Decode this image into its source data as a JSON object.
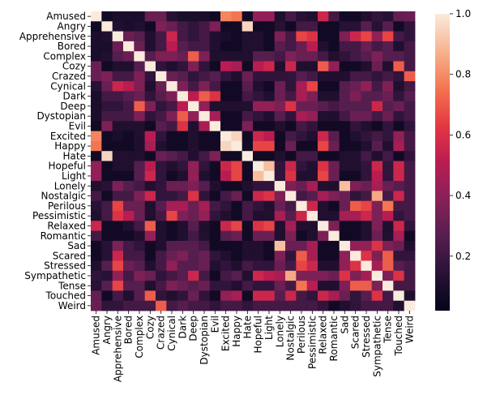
{
  "chart_data": {
    "type": "heatmap",
    "title": "",
    "xlabel": "",
    "ylabel": "",
    "labels": [
      "Amused",
      "Angry",
      "Apprehensive",
      "Bored",
      "Complex",
      "Cozy",
      "Crazed",
      "Cynical",
      "Dark",
      "Deep",
      "Dystopian",
      "Evil",
      "Excited",
      "Happy",
      "Hate",
      "Hopeful",
      "Light",
      "Lonely",
      "Nostalgic",
      "Perilous",
      "Pessimistic",
      "Relaxed",
      "Romantic",
      "Sad",
      "Scared",
      "Stressed",
      "Sympathetic",
      "Tense",
      "Touched",
      "Weird"
    ],
    "value_range": [
      0.0,
      1.0
    ],
    "colorbar_ticks": [
      0.2,
      0.4,
      0.6,
      0.8,
      1.0
    ],
    "colorbar_tick_labels": [
      "0.2",
      "0.4",
      "0.6",
      "0.8",
      "1.0"
    ],
    "colormap": "rocket",
    "matrix": [
      [
        1.0,
        0.05,
        0.08,
        0.08,
        0.08,
        0.3,
        0.3,
        0.12,
        0.08,
        0.08,
        0.08,
        0.05,
        0.78,
        0.75,
        0.05,
        0.4,
        0.4,
        0.1,
        0.2,
        0.12,
        0.1,
        0.55,
        0.2,
        0.05,
        0.05,
        0.1,
        0.15,
        0.12,
        0.28,
        0.3
      ],
      [
        0.05,
        1.0,
        0.1,
        0.08,
        0.1,
        0.05,
        0.35,
        0.3,
        0.2,
        0.15,
        0.2,
        0.35,
        0.05,
        0.05,
        0.95,
        0.05,
        0.05,
        0.12,
        0.05,
        0.2,
        0.2,
        0.05,
        0.05,
        0.12,
        0.12,
        0.25,
        0.12,
        0.25,
        0.05,
        0.15
      ],
      [
        0.08,
        0.1,
        1.0,
        0.3,
        0.25,
        0.1,
        0.2,
        0.55,
        0.2,
        0.15,
        0.2,
        0.1,
        0.08,
        0.05,
        0.1,
        0.1,
        0.05,
        0.35,
        0.2,
        0.65,
        0.6,
        0.05,
        0.05,
        0.35,
        0.55,
        0.65,
        0.4,
        0.65,
        0.2,
        0.15
      ],
      [
        0.08,
        0.08,
        0.3,
        1.0,
        0.3,
        0.1,
        0.2,
        0.5,
        0.25,
        0.2,
        0.2,
        0.1,
        0.05,
        0.05,
        0.1,
        0.1,
        0.05,
        0.25,
        0.2,
        0.3,
        0.5,
        0.1,
        0.05,
        0.2,
        0.2,
        0.3,
        0.2,
        0.25,
        0.1,
        0.2
      ],
      [
        0.08,
        0.1,
        0.25,
        0.3,
        1.0,
        0.25,
        0.35,
        0.35,
        0.3,
        0.7,
        0.35,
        0.1,
        0.1,
        0.1,
        0.1,
        0.25,
        0.25,
        0.2,
        0.35,
        0.3,
        0.3,
        0.2,
        0.1,
        0.15,
        0.2,
        0.25,
        0.35,
        0.25,
        0.25,
        0.2
      ],
      [
        0.3,
        0.05,
        0.1,
        0.1,
        0.25,
        1.0,
        0.15,
        0.1,
        0.15,
        0.35,
        0.15,
        0.05,
        0.5,
        0.45,
        0.05,
        0.5,
        0.55,
        0.1,
        0.55,
        0.1,
        0.1,
        0.7,
        0.4,
        0.05,
        0.05,
        0.1,
        0.3,
        0.1,
        0.7,
        0.2
      ],
      [
        0.3,
        0.35,
        0.2,
        0.2,
        0.35,
        0.15,
        1.0,
        0.3,
        0.25,
        0.15,
        0.2,
        0.25,
        0.15,
        0.1,
        0.3,
        0.15,
        0.15,
        0.15,
        0.15,
        0.25,
        0.2,
        0.1,
        0.1,
        0.1,
        0.2,
        0.2,
        0.15,
        0.2,
        0.15,
        0.7
      ],
      [
        0.12,
        0.3,
        0.55,
        0.5,
        0.35,
        0.1,
        0.3,
        1.0,
        0.35,
        0.2,
        0.35,
        0.2,
        0.05,
        0.05,
        0.25,
        0.1,
        0.05,
        0.3,
        0.15,
        0.45,
        0.65,
        0.05,
        0.05,
        0.25,
        0.3,
        0.4,
        0.2,
        0.35,
        0.1,
        0.2
      ],
      [
        0.08,
        0.2,
        0.2,
        0.25,
        0.3,
        0.15,
        0.25,
        0.35,
        1.0,
        0.5,
        0.7,
        0.6,
        0.05,
        0.05,
        0.2,
        0.15,
        0.1,
        0.3,
        0.2,
        0.45,
        0.35,
        0.1,
        0.1,
        0.25,
        0.35,
        0.25,
        0.25,
        0.3,
        0.15,
        0.25
      ],
      [
        0.08,
        0.15,
        0.15,
        0.2,
        0.7,
        0.35,
        0.15,
        0.2,
        0.5,
        1.0,
        0.4,
        0.1,
        0.1,
        0.1,
        0.1,
        0.4,
        0.4,
        0.35,
        0.6,
        0.3,
        0.3,
        0.25,
        0.2,
        0.25,
        0.25,
        0.25,
        0.55,
        0.25,
        0.3,
        0.2
      ],
      [
        0.08,
        0.2,
        0.2,
        0.2,
        0.35,
        0.15,
        0.2,
        0.35,
        0.7,
        0.4,
        1.0,
        0.45,
        0.05,
        0.05,
        0.2,
        0.15,
        0.1,
        0.25,
        0.15,
        0.45,
        0.4,
        0.1,
        0.1,
        0.2,
        0.3,
        0.3,
        0.2,
        0.3,
        0.15,
        0.2
      ],
      [
        0.05,
        0.35,
        0.1,
        0.1,
        0.1,
        0.05,
        0.25,
        0.2,
        0.6,
        0.1,
        0.45,
        1.0,
        0.05,
        0.05,
        0.35,
        0.05,
        0.05,
        0.1,
        0.05,
        0.2,
        0.15,
        0.05,
        0.05,
        0.05,
        0.15,
        0.1,
        0.05,
        0.15,
        0.05,
        0.15
      ],
      [
        0.78,
        0.05,
        0.08,
        0.05,
        0.1,
        0.5,
        0.15,
        0.05,
        0.05,
        0.1,
        0.05,
        0.05,
        1.0,
        0.95,
        0.05,
        0.55,
        0.5,
        0.05,
        0.2,
        0.15,
        0.1,
        0.55,
        0.25,
        0.05,
        0.1,
        0.15,
        0.2,
        0.15,
        0.4,
        0.2
      ],
      [
        0.75,
        0.05,
        0.05,
        0.05,
        0.1,
        0.45,
        0.1,
        0.05,
        0.05,
        0.1,
        0.05,
        0.05,
        0.95,
        1.0,
        0.05,
        0.65,
        0.65,
        0.05,
        0.3,
        0.05,
        0.05,
        0.65,
        0.3,
        0.05,
        0.05,
        0.1,
        0.25,
        0.1,
        0.45,
        0.2
      ],
      [
        0.05,
        0.95,
        0.1,
        0.1,
        0.1,
        0.05,
        0.3,
        0.25,
        0.2,
        0.1,
        0.2,
        0.35,
        0.05,
        0.05,
        1.0,
        0.05,
        0.05,
        0.1,
        0.05,
        0.2,
        0.2,
        0.05,
        0.05,
        0.1,
        0.1,
        0.2,
        0.1,
        0.2,
        0.05,
        0.15
      ],
      [
        0.4,
        0.05,
        0.1,
        0.1,
        0.25,
        0.5,
        0.15,
        0.1,
        0.15,
        0.4,
        0.15,
        0.05,
        0.55,
        0.65,
        0.05,
        1.0,
        0.9,
        0.15,
        0.55,
        0.15,
        0.1,
        0.6,
        0.3,
        0.1,
        0.1,
        0.15,
        0.55,
        0.15,
        0.55,
        0.2
      ],
      [
        0.4,
        0.05,
        0.05,
        0.05,
        0.25,
        0.55,
        0.15,
        0.05,
        0.1,
        0.4,
        0.1,
        0.05,
        0.5,
        0.65,
        0.05,
        0.9,
        1.0,
        0.15,
        0.6,
        0.1,
        0.1,
        0.65,
        0.3,
        0.05,
        0.05,
        0.15,
        0.5,
        0.15,
        0.55,
        0.2
      ],
      [
        0.1,
        0.12,
        0.35,
        0.25,
        0.2,
        0.1,
        0.15,
        0.3,
        0.3,
        0.35,
        0.25,
        0.1,
        0.05,
        0.05,
        0.1,
        0.15,
        0.15,
        1.0,
        0.35,
        0.3,
        0.45,
        0.1,
        0.1,
        0.9,
        0.35,
        0.3,
        0.45,
        0.3,
        0.25,
        0.2
      ],
      [
        0.2,
        0.05,
        0.2,
        0.2,
        0.35,
        0.55,
        0.15,
        0.15,
        0.2,
        0.6,
        0.15,
        0.05,
        0.2,
        0.3,
        0.05,
        0.55,
        0.6,
        0.35,
        1.0,
        0.2,
        0.25,
        0.45,
        0.35,
        0.3,
        0.15,
        0.2,
        0.85,
        0.2,
        0.55,
        0.2
      ],
      [
        0.12,
        0.2,
        0.65,
        0.3,
        0.3,
        0.1,
        0.25,
        0.45,
        0.45,
        0.3,
        0.45,
        0.2,
        0.15,
        0.05,
        0.2,
        0.15,
        0.1,
        0.3,
        0.2,
        1.0,
        0.55,
        0.1,
        0.05,
        0.3,
        0.7,
        0.65,
        0.35,
        0.75,
        0.2,
        0.2
      ],
      [
        0.1,
        0.2,
        0.6,
        0.5,
        0.3,
        0.1,
        0.2,
        0.65,
        0.35,
        0.3,
        0.4,
        0.15,
        0.1,
        0.05,
        0.2,
        0.1,
        0.1,
        0.45,
        0.25,
        0.55,
        1.0,
        0.1,
        0.1,
        0.45,
        0.45,
        0.55,
        0.35,
        0.5,
        0.15,
        0.2
      ],
      [
        0.55,
        0.05,
        0.05,
        0.1,
        0.2,
        0.7,
        0.1,
        0.05,
        0.1,
        0.25,
        0.1,
        0.05,
        0.55,
        0.65,
        0.05,
        0.6,
        0.65,
        0.1,
        0.45,
        0.1,
        0.1,
        1.0,
        0.35,
        0.05,
        0.05,
        0.1,
        0.35,
        0.1,
        0.55,
        0.15
      ],
      [
        0.2,
        0.05,
        0.05,
        0.05,
        0.1,
        0.4,
        0.1,
        0.05,
        0.1,
        0.2,
        0.1,
        0.05,
        0.25,
        0.3,
        0.05,
        0.3,
        0.3,
        0.1,
        0.35,
        0.05,
        0.1,
        0.35,
        1.0,
        0.05,
        0.05,
        0.1,
        0.3,
        0.1,
        0.45,
        0.05
      ],
      [
        0.05,
        0.12,
        0.35,
        0.2,
        0.15,
        0.05,
        0.1,
        0.25,
        0.25,
        0.25,
        0.2,
        0.05,
        0.05,
        0.05,
        0.1,
        0.1,
        0.05,
        0.9,
        0.3,
        0.3,
        0.45,
        0.05,
        0.05,
        1.0,
        0.4,
        0.4,
        0.6,
        0.35,
        0.3,
        0.1
      ],
      [
        0.05,
        0.12,
        0.55,
        0.2,
        0.2,
        0.05,
        0.2,
        0.3,
        0.35,
        0.25,
        0.3,
        0.15,
        0.1,
        0.05,
        0.1,
        0.1,
        0.05,
        0.35,
        0.15,
        0.7,
        0.45,
        0.05,
        0.05,
        0.4,
        1.0,
        0.6,
        0.35,
        0.7,
        0.15,
        0.15
      ],
      [
        0.1,
        0.25,
        0.65,
        0.3,
        0.25,
        0.1,
        0.2,
        0.4,
        0.25,
        0.25,
        0.3,
        0.1,
        0.15,
        0.1,
        0.2,
        0.15,
        0.15,
        0.3,
        0.2,
        0.65,
        0.55,
        0.1,
        0.1,
        0.4,
        0.6,
        1.0,
        0.45,
        0.7,
        0.25,
        0.2
      ],
      [
        0.15,
        0.12,
        0.4,
        0.2,
        0.35,
        0.3,
        0.15,
        0.2,
        0.25,
        0.55,
        0.2,
        0.05,
        0.2,
        0.25,
        0.1,
        0.55,
        0.5,
        0.45,
        0.85,
        0.35,
        0.35,
        0.35,
        0.3,
        0.6,
        0.35,
        0.45,
        1.0,
        0.35,
        0.6,
        0.2
      ],
      [
        0.12,
        0.25,
        0.65,
        0.25,
        0.25,
        0.1,
        0.2,
        0.35,
        0.3,
        0.25,
        0.3,
        0.15,
        0.15,
        0.1,
        0.2,
        0.15,
        0.15,
        0.3,
        0.2,
        0.75,
        0.5,
        0.1,
        0.1,
        0.35,
        0.7,
        0.7,
        0.35,
        1.0,
        0.2,
        0.2
      ],
      [
        0.28,
        0.05,
        0.2,
        0.1,
        0.25,
        0.7,
        0.15,
        0.1,
        0.15,
        0.3,
        0.15,
        0.05,
        0.4,
        0.45,
        0.05,
        0.55,
        0.55,
        0.25,
        0.55,
        0.2,
        0.15,
        0.55,
        0.45,
        0.3,
        0.15,
        0.25,
        0.6,
        0.2,
        1.0,
        0.1
      ],
      [
        0.3,
        0.15,
        0.15,
        0.2,
        0.2,
        0.2,
        0.7,
        0.2,
        0.25,
        0.2,
        0.2,
        0.15,
        0.2,
        0.2,
        0.15,
        0.2,
        0.2,
        0.2,
        0.2,
        0.2,
        0.2,
        0.15,
        0.05,
        0.1,
        0.15,
        0.2,
        0.2,
        0.2,
        0.1,
        1.0
      ]
    ]
  }
}
